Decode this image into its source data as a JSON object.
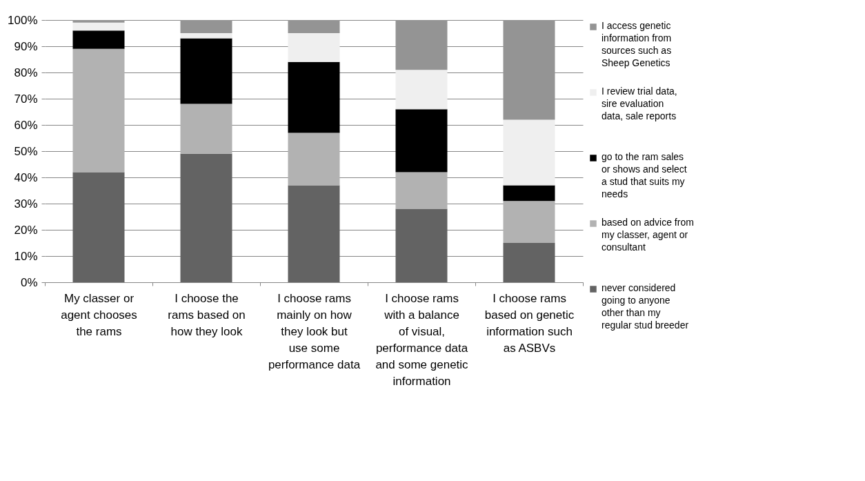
{
  "chart_data": {
    "type": "bar",
    "stacked": true,
    "categories": [
      "My classer or agent chooses the rams",
      "I choose the rams based on how they look",
      "I choose rams mainly on how they look but use some performance data",
      "I choose rams with a balance of visual, performance data and some genetic information",
      "I choose rams based on genetic information such as ASBVs"
    ],
    "series": [
      {
        "name": "never considered going to anyone other than my regular stud breeder",
        "color": "#636363",
        "values": [
          42,
          49,
          37,
          28,
          15
        ]
      },
      {
        "name": "based on advice from my classer, agent or consultant",
        "color": "#b2b2b2",
        "values": [
          47,
          19,
          20,
          14,
          16
        ]
      },
      {
        "name": "go to the ram sales or shows and select a stud that suits my needs",
        "color": "#000000",
        "values": [
          7,
          25,
          27,
          24,
          6
        ]
      },
      {
        "name": "I review trial data, sire evaluation data, sale reports",
        "color": "#efefef",
        "values": [
          3,
          2,
          11,
          15,
          25
        ]
      },
      {
        "name": "I access genetic information from sources such as Sheep Genetics",
        "color": "#949494",
        "values": [
          1,
          5,
          5,
          19,
          38
        ]
      }
    ],
    "ylim": [
      0,
      100
    ],
    "yticks": [
      {
        "value": 0,
        "label": "0%"
      },
      {
        "value": 10,
        "label": "10%"
      },
      {
        "value": 20,
        "label": "20%"
      },
      {
        "value": 30,
        "label": "30%"
      },
      {
        "value": 40,
        "label": "40%"
      },
      {
        "value": 50,
        "label": "50%"
      },
      {
        "value": 60,
        "label": "60%"
      },
      {
        "value": 70,
        "label": "70%"
      },
      {
        "value": 80,
        "label": "80%"
      },
      {
        "value": 90,
        "label": "90%"
      },
      {
        "value": 100,
        "label": "100%"
      }
    ],
    "grid": "y",
    "legend": "right"
  }
}
